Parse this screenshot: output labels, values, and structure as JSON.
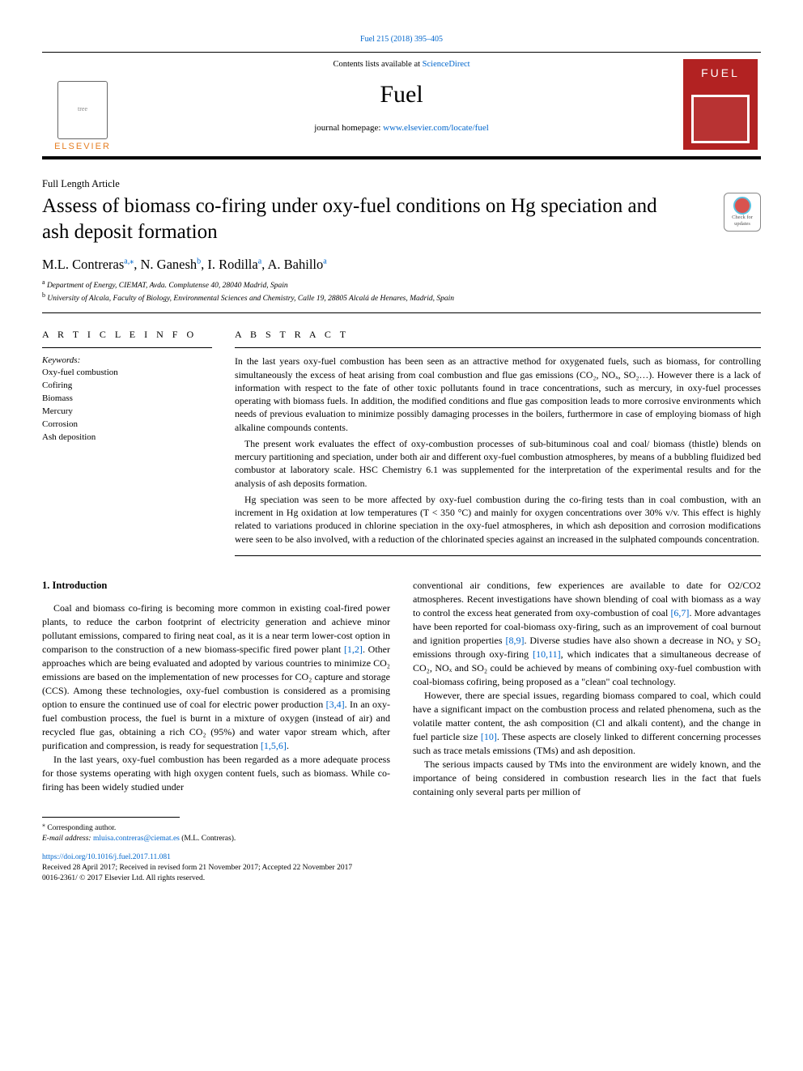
{
  "header": {
    "citation_link": "Fuel 215 (2018) 395–405",
    "contents_prefix": "Contents lists available at ",
    "contents_link": "ScienceDirect",
    "journal_title": "Fuel",
    "homepage_prefix": "journal homepage: ",
    "homepage_link": "www.elsevier.com/locate/fuel",
    "publisher_logo_text": "ELSEVIER",
    "cover_text": "FUEL",
    "colors": {
      "link": "#0066cc",
      "publisher_orange": "#e67e22",
      "cover_red": "#b22222",
      "rule": "#000000"
    }
  },
  "badge": {
    "line1": "Check for",
    "line2": "updates"
  },
  "article": {
    "type": "Full Length Article",
    "title": "Assess of biomass co-firing under oxy-fuel conditions on Hg speciation and ash deposit formation",
    "authors_html": "M.L. Contreras",
    "authors": [
      {
        "name": "M.L. Contreras",
        "affs": "a,",
        "corr": "⁎"
      },
      {
        "name": "N. Ganesh",
        "affs": "b"
      },
      {
        "name": "I. Rodilla",
        "affs": "a"
      },
      {
        "name": "A. Bahillo",
        "affs": "a"
      }
    ],
    "affiliations": [
      {
        "key": "a",
        "text": "Department of Energy, CIEMAT, Avda. Complutense 40, 28040 Madrid, Spain"
      },
      {
        "key": "b",
        "text": "University of Alcala, Faculty of Biology, Environmental Sciences and Chemistry, Calle 19, 28805 Alcalá de Henares, Madrid, Spain"
      }
    ]
  },
  "article_info": {
    "heading": "A R T I C L E  I N F O",
    "kw_label": "Keywords:",
    "keywords": [
      "Oxy-fuel combustion",
      "Cofiring",
      "Biomass",
      "Mercury",
      "Corrosion",
      "Ash deposition"
    ]
  },
  "abstract": {
    "heading": "A B S T R A C T",
    "paragraphs": [
      "In the last years oxy-fuel combustion has been seen as an attractive method for oxygenated fuels, such as biomass, for controlling simultaneously the excess of heat arising from coal combustion and flue gas emissions (CO₂, NOₓ, SO₂…). However there is a lack of information with respect to the fate of other toxic pollutants found in trace concentrations, such as mercury, in oxy-fuel processes operating with biomass fuels. In addition, the modified conditions and flue gas composition leads to more corrosive environments which needs of previous evaluation to minimize possibly damaging processes in the boilers, furthermore in case of employing biomass of high alkaline compounds contents.",
      "The present work evaluates the effect of oxy-combustion processes of sub-bituminous coal and coal/ biomass (thistle) blends on mercury partitioning and speciation, under both air and different oxy-fuel combustion atmospheres, by means of a bubbling fluidized bed combustor at laboratory scale. HSC Chemistry 6.1 was supplemented for the interpretation of the experimental results and for the analysis of ash deposits formation.",
      "Hg speciation was seen to be more affected by oxy-fuel combustion during the co-firing tests than in coal combustion, with an increment in Hg oxidation at low temperatures (T < 350 °C) and mainly for oxygen concentrations over 30% v/v. This effect is highly related to variations produced in chlorine speciation in the oxy-fuel atmospheres, in which ash deposition and corrosion modifications were seen to be also involved, with a reduction of the chlorinated species against an increased in the sulphated compounds concentration."
    ]
  },
  "body": {
    "section_number": "1.",
    "section_title": "Introduction",
    "col1": [
      "Coal and biomass co-firing is becoming more common in existing coal-fired power plants, to reduce the carbon footprint of electricity generation and achieve minor pollutant emissions, compared to firing neat coal, as it is a near term lower-cost option in comparison to the construction of a new biomass-specific fired power plant [1,2]. Other approaches which are being evaluated and adopted by various countries to minimize CO₂ emissions are based on the implementation of new processes for CO₂ capture and storage (CCS). Among these technologies, oxy-fuel combustion is considered as a promising option to ensure the continued use of coal for electric power production [3,4]. In an oxy-fuel combustion process, the fuel is burnt in a mixture of oxygen (instead of air) and recycled flue gas, obtaining a rich CO₂ (95%) and water vapor stream which, after purification and compression, is ready for sequestration [1,5,6].",
      "In the last years, oxy-fuel combustion has been regarded as a more adequate process for those systems operating with high oxygen content fuels, such as biomass. While co-firing has been widely studied under"
    ],
    "col2": [
      "conventional air conditions, few experiences are available to date for O2/CO2 atmospheres. Recent investigations have shown blending of coal with biomass as a way to control the excess heat generated from oxy-combustion of coal [6,7]. More advantages have been reported for coal-biomass oxy-firing, such as an improvement of coal burnout and ignition properties [8,9]. Diverse studies have also shown a decrease in NOₓ y SO₂ emissions through oxy-firing [10,11], which indicates that a simultaneous decrease of CO₂, NOₓ and SO₂ could be achieved by means of combining oxy-fuel combustion with coal-biomass cofiring, being proposed as a \"clean\" coal technology.",
      "However, there are special issues, regarding biomass compared to coal, which could have a significant impact on the combustion process and related phenomena, such as the volatile matter content, the ash composition (Cl and alkali content), and the change in fuel particle size [10]. These aspects are closely linked to different concerning processes such as trace metals emissions (TMs) and ash deposition.",
      "The serious impacts caused by TMs into the environment are widely known, and the importance of being considered in combustion research lies in the fact that fuels containing only several parts per million of"
    ],
    "refs": {
      "r12": "[1,2]",
      "r34": "[3,4]",
      "r156": "[1,5,6]",
      "r67": "[6,7]",
      "r89": "[8,9]",
      "r1011": "[10,11]",
      "r10": "[10]"
    }
  },
  "footer": {
    "corr_symbol": "⁎",
    "corr_text": "Corresponding author.",
    "email_label": "E-mail address: ",
    "email": "mluisa.contreras@ciemat.es",
    "email_suffix": " (M.L. Contreras).",
    "doi": "https://doi.org/10.1016/j.fuel.2017.11.081",
    "received": "Received 28 April 2017; Received in revised form 21 November 2017; Accepted 22 November 2017",
    "copyright": "0016-2361/ © 2017 Elsevier Ltd. All rights reserved."
  }
}
